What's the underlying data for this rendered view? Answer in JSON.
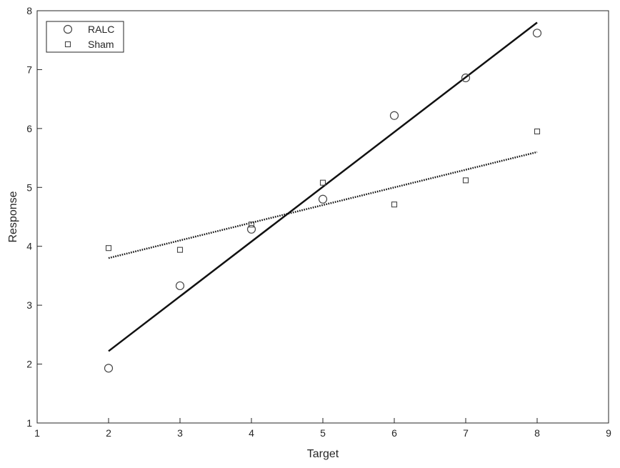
{
  "chart_data": {
    "type": "scatter",
    "title": "",
    "xlabel": "Target",
    "ylabel": "Response",
    "xlim": [
      1,
      9
    ],
    "ylim": [
      1,
      8
    ],
    "xticks": [
      "1",
      "2",
      "3",
      "4",
      "5",
      "6",
      "7",
      "8",
      "9"
    ],
    "yticks": [
      "1",
      "2",
      "3",
      "4",
      "5",
      "6",
      "7",
      "8"
    ],
    "grid": false,
    "legend": "top-left",
    "series": [
      {
        "name": "RALC",
        "marker": "circle",
        "color": "#444444",
        "points": [
          {
            "x": 2,
            "y": 1.93
          },
          {
            "x": 3,
            "y": 3.33
          },
          {
            "x": 4,
            "y": 4.29
          },
          {
            "x": 5,
            "y": 4.8
          },
          {
            "x": 6,
            "y": 6.22
          },
          {
            "x": 7,
            "y": 6.86
          },
          {
            "x": 8,
            "y": 7.62
          }
        ],
        "fit": {
          "style": "solid",
          "from": {
            "x": 2,
            "y": 2.22
          },
          "to": {
            "x": 8,
            "y": 7.8
          }
        }
      },
      {
        "name": "Sham",
        "marker": "square",
        "color": "#444444",
        "points": [
          {
            "x": 2,
            "y": 3.97
          },
          {
            "x": 3,
            "y": 3.94
          },
          {
            "x": 4,
            "y": 4.37
          },
          {
            "x": 5,
            "y": 5.08
          },
          {
            "x": 6,
            "y": 4.71
          },
          {
            "x": 7,
            "y": 5.12
          },
          {
            "x": 8,
            "y": 5.95
          }
        ],
        "fit": {
          "style": "dotted",
          "from": {
            "x": 2,
            "y": 3.8
          },
          "to": {
            "x": 8,
            "y": 5.6
          }
        }
      }
    ]
  }
}
